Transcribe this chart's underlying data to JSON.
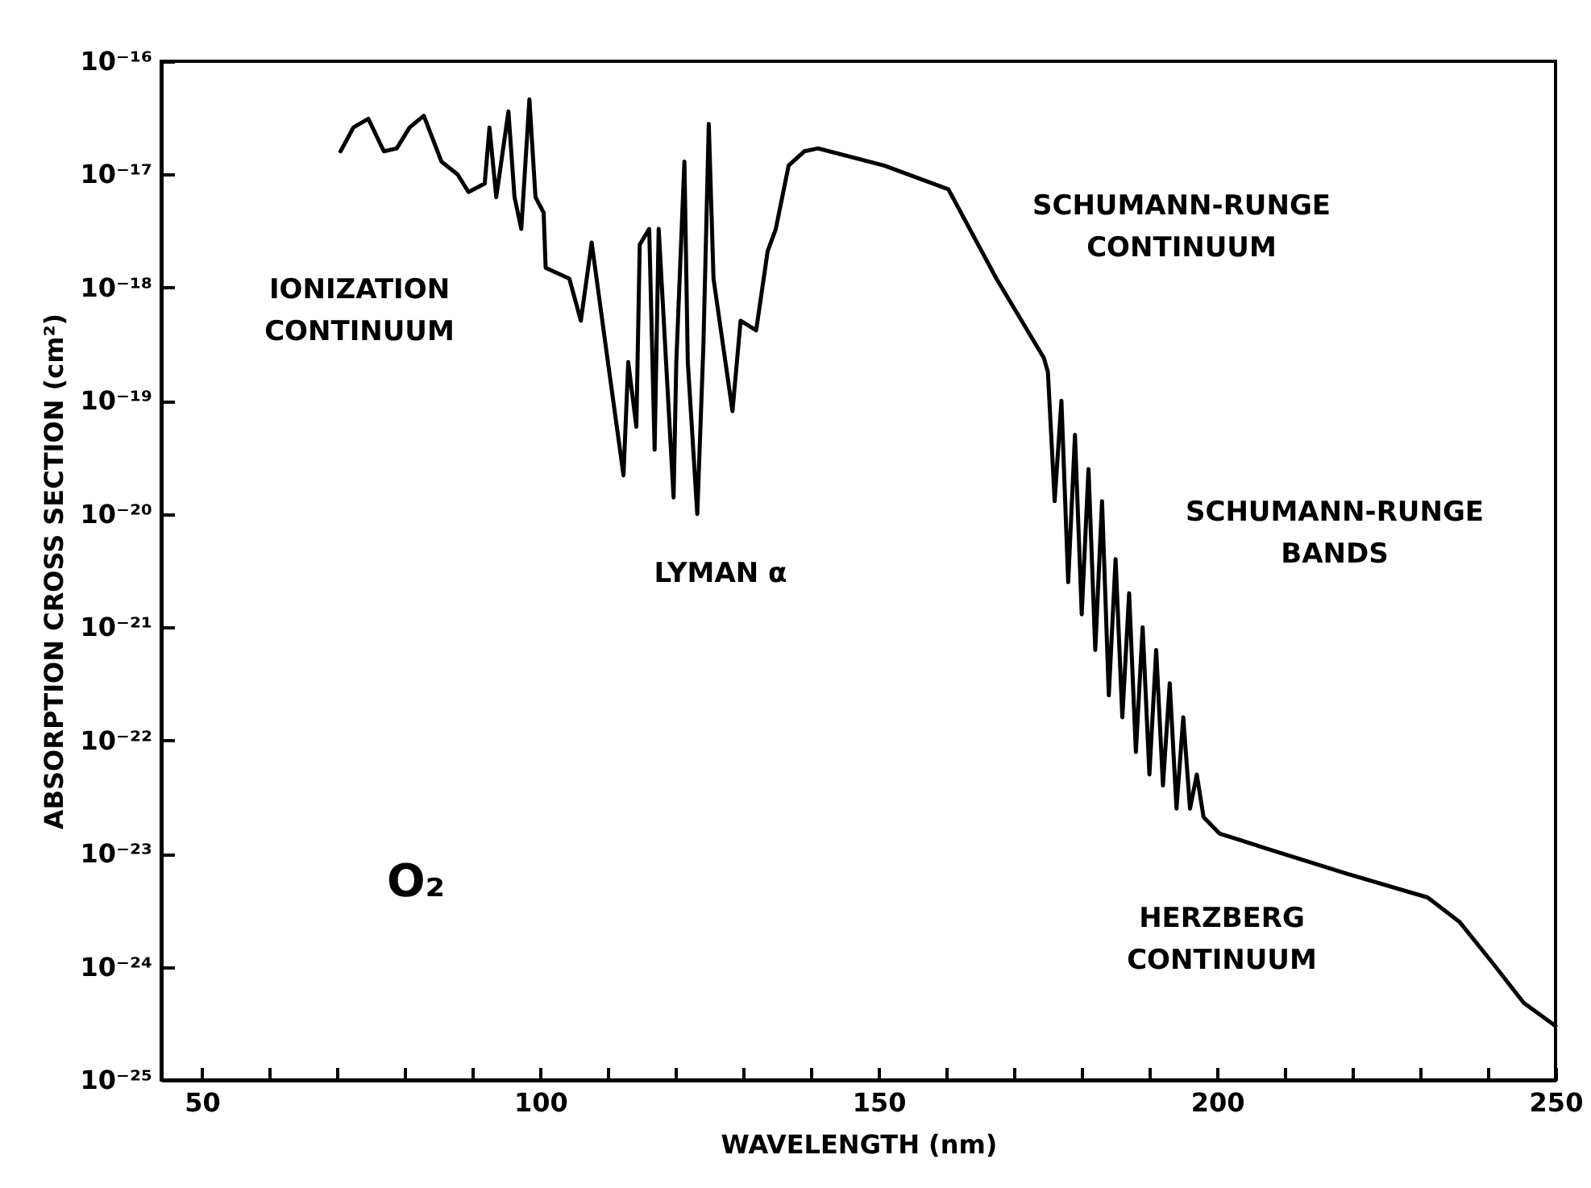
{
  "chart_data": {
    "type": "line",
    "xlabel": "WAVELENGTH (nm)",
    "ylabel": "ABSORPTION CROSS SECTION (cm²)",
    "log": "y",
    "grid": false,
    "xlim": [
      44,
      250
    ],
    "xticks": [
      50,
      {
        "value": 60,
        "label": null
      },
      {
        "value": 70,
        "label": null
      },
      {
        "value": 80,
        "label": null
      },
      {
        "value": 90,
        "label": null
      },
      100,
      {
        "value": 110,
        "label": null
      },
      {
        "value": 120,
        "label": null
      },
      {
        "value": 130,
        "label": null
      },
      {
        "value": 140,
        "label": null
      },
      150,
      {
        "value": 160,
        "label": null
      },
      {
        "value": 170,
        "label": null
      },
      {
        "value": 180,
        "label": null
      },
      {
        "value": 190,
        "label": null
      },
      200,
      {
        "value": 210,
        "label": null
      },
      {
        "value": 220,
        "label": null
      },
      {
        "value": 230,
        "label": null
      },
      {
        "value": 240,
        "label": null
      },
      250
    ],
    "ylim": [
      1e-25,
      1e-16
    ],
    "yticks": [
      {
        "value": 1e-25,
        "label": "10⁻²⁵"
      },
      {
        "value": 1e-24,
        "label": "10⁻²⁴"
      },
      {
        "value": 1e-23,
        "label": "10⁻²³"
      },
      {
        "value": 1e-22,
        "label": "10⁻²²"
      },
      {
        "value": 1e-21,
        "label": "10⁻²¹"
      },
      {
        "value": 1e-20,
        "label": "10⁻²⁰"
      },
      {
        "value": 1e-19,
        "label": "10⁻¹⁹"
      },
      {
        "value": 1e-18,
        "label": "10⁻¹⁸"
      },
      {
        "value": 1e-17,
        "label": "10⁻¹⁷"
      },
      {
        "value": 1e-16,
        "label": "10⁻¹⁶"
      }
    ],
    "x": [
      70.5,
      72.4,
      74.6,
      76.9,
      78.8,
      80.7,
      82.8,
      85.4,
      87.8,
      89.4,
      91.8,
      92.5,
      93.5,
      95.3,
      96.2,
      97.2,
      98.4,
      99.3,
      100.5,
      100.8,
      104.3,
      106,
      107.6,
      110,
      112.3,
      113,
      114.2,
      114.7,
      116.1,
      116.9,
      117.5,
      119.7,
      120.1,
      121.3,
      121.8,
      123.2,
      124.1,
      124.9,
      125.6,
      128.4,
      129.6,
      131.9,
      133.6,
      134.8,
      136.7,
      139,
      141,
      150.8,
      160.3,
      167.4,
      174.4,
      175,
      176,
      177,
      178,
      179,
      180,
      181,
      182,
      183,
      184,
      185,
      186,
      187,
      188,
      189,
      190,
      191,
      192,
      193,
      194,
      195,
      196,
      197,
      198,
      200.4,
      207.5,
      219.3,
      231.1,
      235.8,
      240.6,
      245.3,
      250
    ],
    "series": [
      {
        "color": "#000000",
        "line_style": "solid",
        "values": [
          1.6e-17,
          2.6e-17,
          3.1e-17,
          1.6e-17,
          1.7e-17,
          2.6e-17,
          3.3e-17,
          1.3e-17,
          1e-17,
          7e-18,
          8.3e-18,
          2.6e-17,
          6.3e-18,
          3.6e-17,
          6.3e-18,
          3.3e-18,
          4.6e-17,
          6.3e-18,
          4.6e-18,
          1.5e-18,
          1.2e-18,
          5.1e-19,
          2.5e-18,
          2.2e-19,
          2.2e-20,
          2.2e-19,
          5.9e-20,
          2.4e-18,
          3.3e-18,
          3.7e-20,
          3.3e-18,
          1.4e-20,
          2.2e-19,
          1.3e-17,
          2.2e-19,
          1e-20,
          3e-19,
          2.8e-17,
          1.2e-18,
          8.1e-20,
          5.1e-19,
          4.2e-19,
          2.1e-18,
          3.3e-18,
          1.2e-17,
          1.6e-17,
          1.7e-17,
          1.2e-17,
          7.4e-18,
          1.2e-18,
          2.4e-19,
          1.8e-19,
          1.3e-20,
          1e-19,
          2.5e-21,
          5e-20,
          1.3e-21,
          2.5e-20,
          6.3e-22,
          1.3e-20,
          2.5e-22,
          4e-21,
          1.6e-22,
          2e-21,
          7.9e-23,
          1e-21,
          5e-23,
          6.3e-22,
          4e-23,
          3.2e-22,
          2.5e-23,
          1.6e-22,
          2.5e-23,
          5e-23,
          2.1e-23,
          1.5e-23,
          1.1e-23,
          6.6e-24,
          4.1e-24,
          2.5e-24,
          1.1e-24,
          4.8e-25,
          3e-25
        ]
      }
    ],
    "annotations": [
      "IONIZATION\nCONTINUUM",
      "LYMAN α",
      "SCHUMANN-RUNGE\nCONTINUUM",
      "SCHUMANN-RUNGE\nBANDS",
      "HERZBERG\nCONTINUUM",
      "O₂"
    ]
  }
}
